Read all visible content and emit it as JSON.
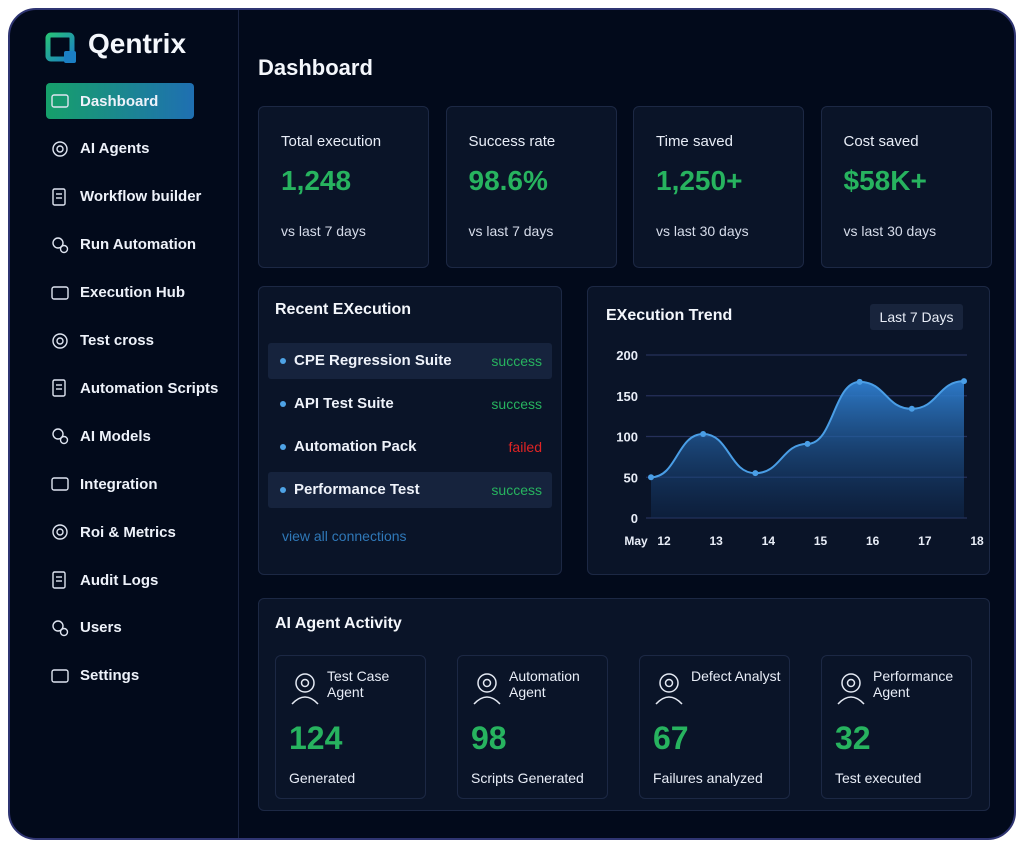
{
  "brand": "Qentrix",
  "nav": {
    "active": 0,
    "items": [
      "Dashboard",
      "AI Agents",
      "Workflow builder",
      "Run Automation",
      "Execution Hub",
      "Test cross",
      "Automation Scripts",
      "AI Models",
      "Integration",
      "Roi & Metrics",
      "Audit Logs",
      "Users",
      "Settings"
    ]
  },
  "header": {
    "title": "Dashboard"
  },
  "stats": [
    {
      "label": "Total execution",
      "value": "1,248",
      "note": "vs last 7 days"
    },
    {
      "label": "Success rate",
      "value": "98.6%",
      "note": "vs last 7 days"
    },
    {
      "label": "Time saved",
      "value": "1,250+",
      "note": "vs last 30 days"
    },
    {
      "label": "Cost saved",
      "value": "$58K+",
      "note": "vs last 30 days"
    }
  ],
  "recent": {
    "title": "Recent EXecution",
    "items": [
      {
        "name": "CPE Regression Suite",
        "status": "success",
        "status_color": "#27b35f",
        "selected": true
      },
      {
        "name": "API Test Suite",
        "status": "success",
        "status_color": "#27b35f",
        "selected": false
      },
      {
        "name": "Automation Pack",
        "status": "failed",
        "status_color": "#e02424",
        "selected": false
      },
      {
        "name": "Performance Test",
        "status": "success",
        "status_color": "#27b35f",
        "selected": true
      }
    ],
    "link": "view all connections"
  },
  "trend": {
    "range_button": "Last 7 Days",
    "chart_data": {
      "type": "area",
      "title": "EXecution Trend",
      "x_label": "May",
      "categories": [
        "12",
        "13",
        "14",
        "15",
        "16",
        "17",
        "18"
      ],
      "values": [
        50,
        103,
        55,
        91,
        167,
        134,
        168
      ],
      "color": "#4a9ee6",
      "ylim": [
        0,
        200
      ],
      "yticks": [
        0,
        50,
        100,
        150,
        200
      ],
      "grid": true
    }
  },
  "activity": {
    "title": "AI Agent Activity",
    "agents": [
      {
        "name": "Test Case Agent",
        "value": "124",
        "note": "Generated"
      },
      {
        "name": "Automation Agent",
        "value": "98",
        "note": "Scripts Generated"
      },
      {
        "name": "Defect Analyst",
        "value": "67",
        "note": "Failures analyzed"
      },
      {
        "name": "Performance Agent",
        "value": "32",
        "note": "Test executed"
      }
    ]
  }
}
